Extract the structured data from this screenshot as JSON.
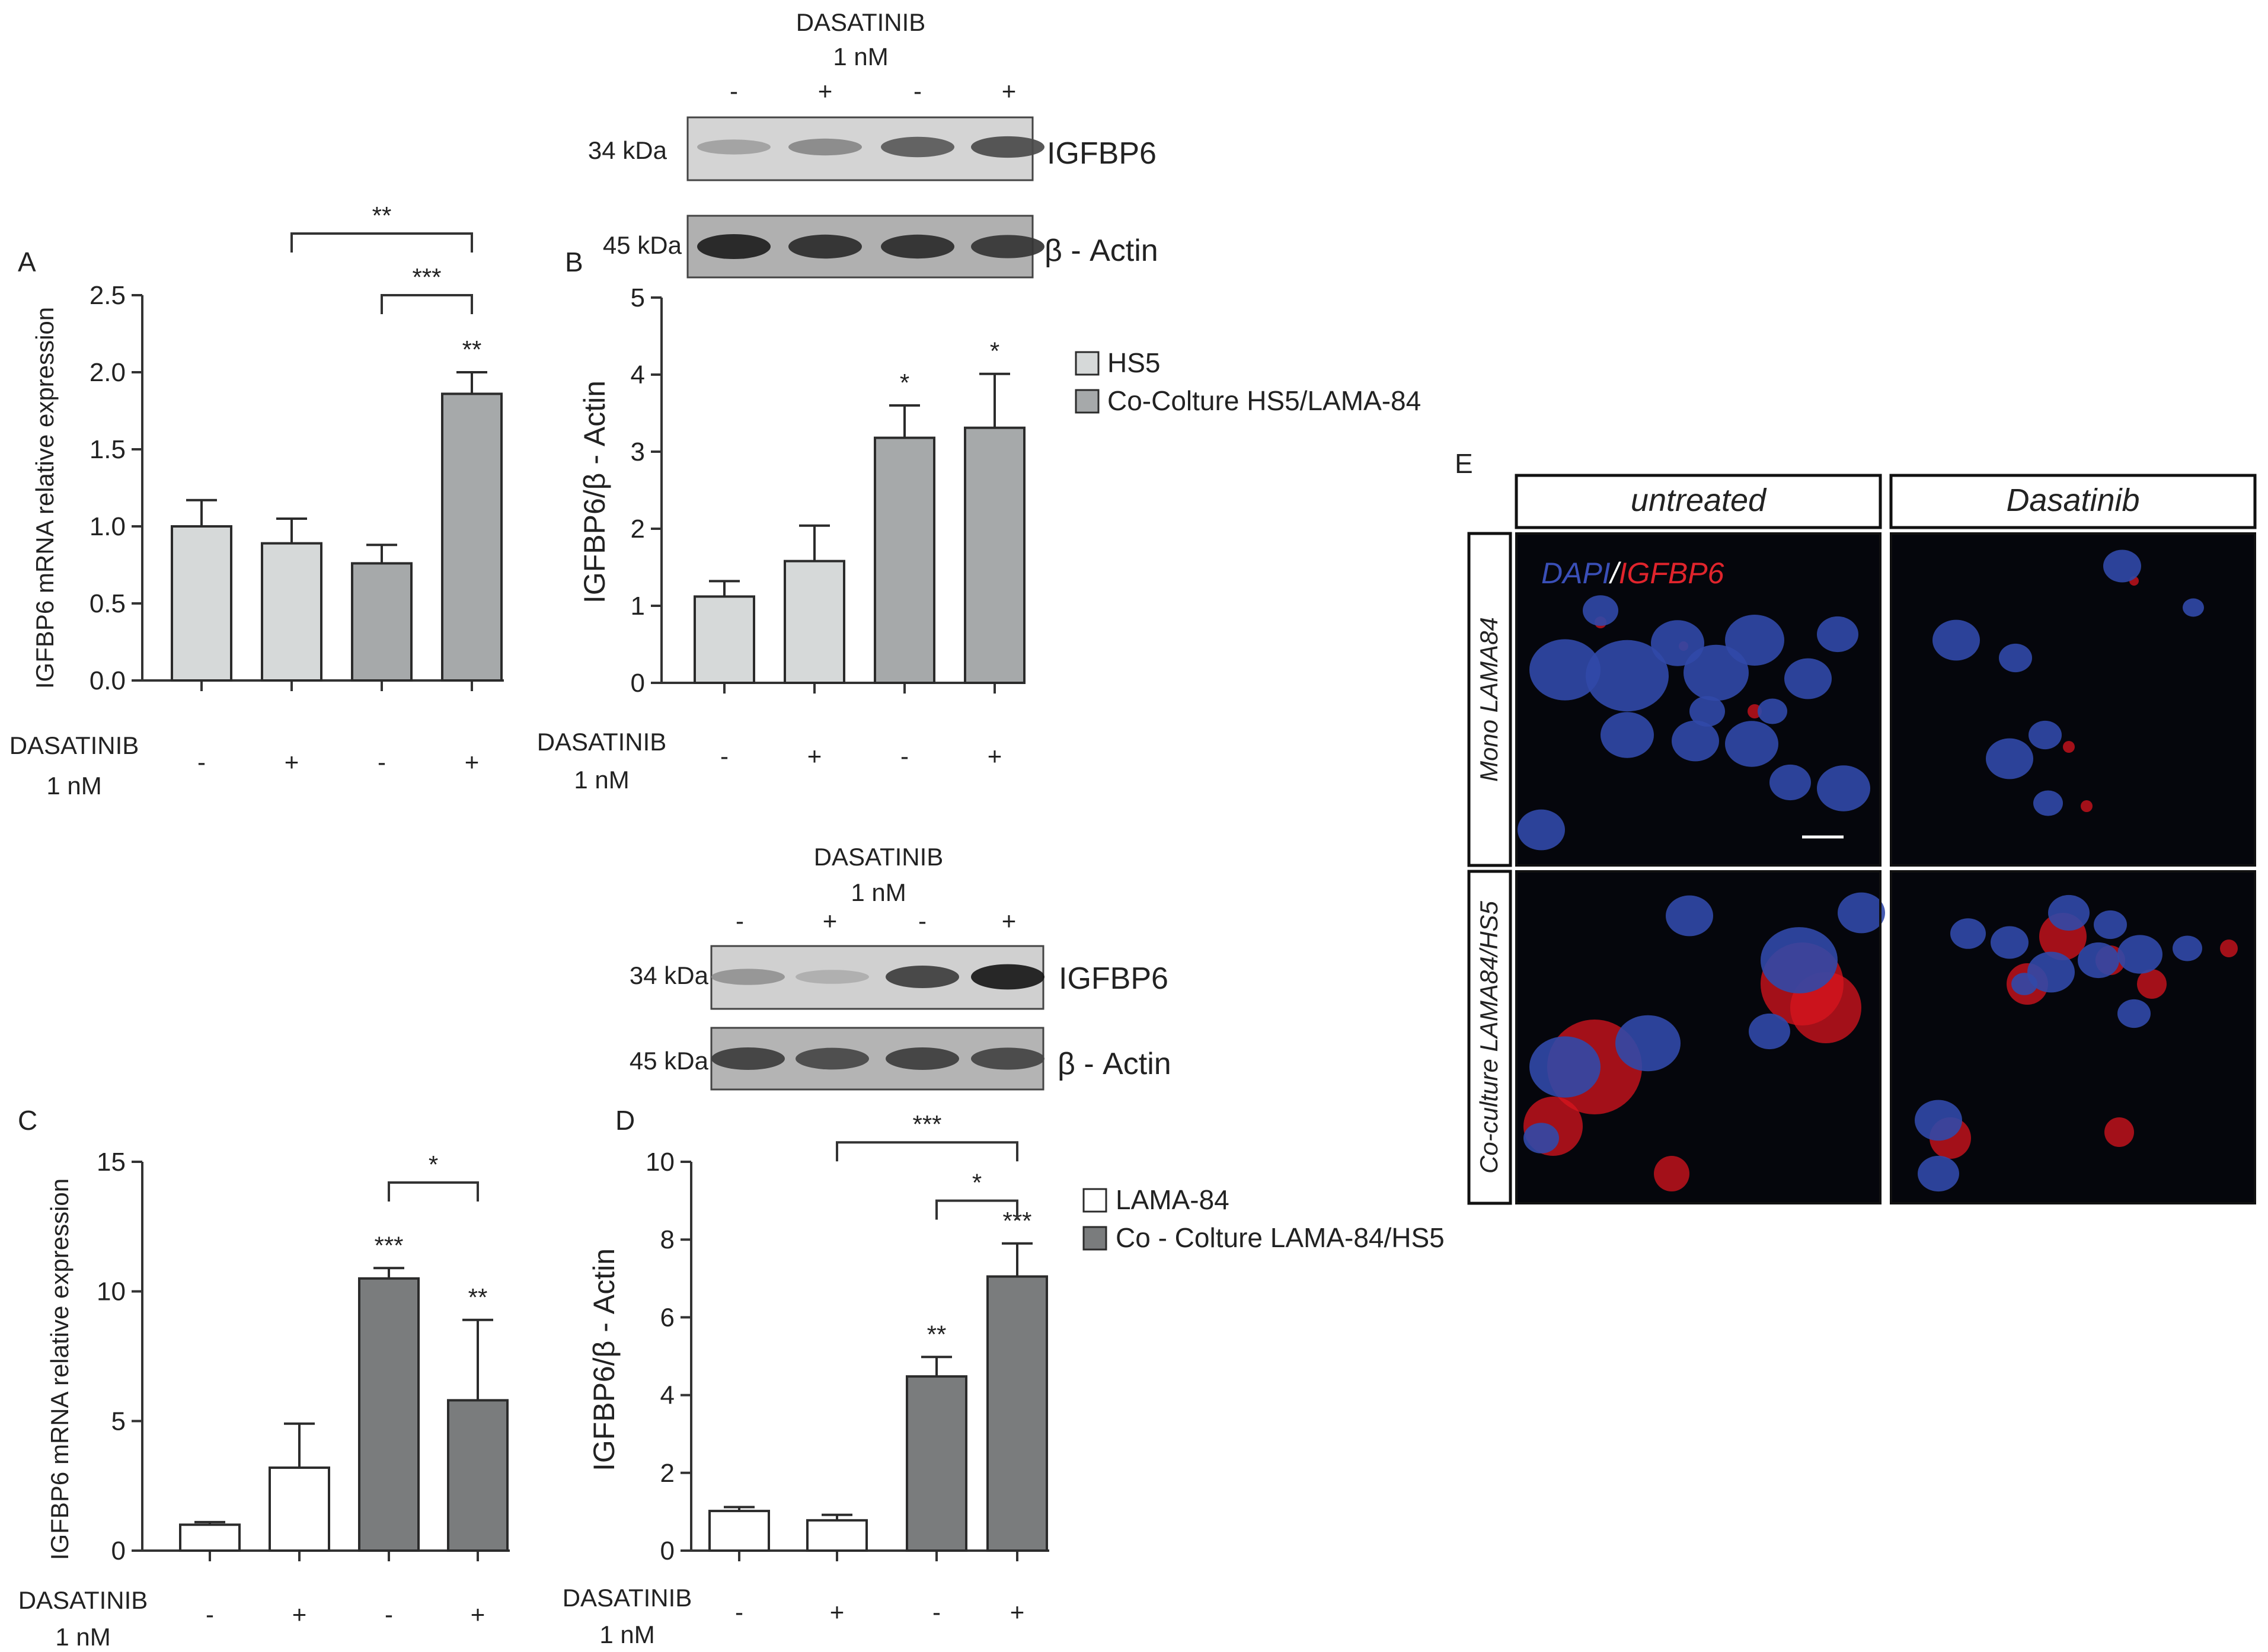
{
  "colors": {
    "light_bar": "#d6d9d9",
    "mid_bar": "#a6a9aa",
    "white_bar": "#ffffff",
    "dark_bar": "#7a7c7d",
    "bar_stroke": "#2b2b2b",
    "dapi_text": "#3a4fb8",
    "igfbp6_text": "#e0242c",
    "micro_bg": "#05060c",
    "nucleus": "#3149a8",
    "stain": "#d8141e"
  },
  "treatment_labels": {
    "drug": "DASATINIB",
    "dose": "1 nM",
    "signs": [
      "-",
      "+",
      "-",
      "+"
    ]
  },
  "legend_top": {
    "items": [
      "HS5",
      "Co-Colture HS5/LAMA-84"
    ]
  },
  "legend_bottom": {
    "items": [
      "LAMA-84",
      "Co - Colture LAMA-84/HS5"
    ]
  },
  "blot_top": {
    "header_drug": "DASATINIB",
    "header_dose": "1 nM",
    "signs": [
      "-",
      "+",
      "-",
      "+"
    ],
    "rows": [
      {
        "kda": "34 kDa",
        "protein": "IGFBP6",
        "band_intensity": [
          0.22,
          0.35,
          0.6,
          0.68
        ]
      },
      {
        "kda": "45 kDa",
        "protein": "β - Actin",
        "band_intensity": [
          0.92,
          0.85,
          0.85,
          0.8
        ]
      }
    ]
  },
  "blot_bottom": {
    "header_drug": "DASATINIB",
    "header_dose": "1 nM",
    "signs": [
      "-",
      "+",
      "-",
      "+"
    ],
    "rows": [
      {
        "kda": "34 kDa",
        "protein": "IGFBP6",
        "band_intensity": [
          0.3,
          0.15,
          0.75,
          0.95
        ]
      },
      {
        "kda": "45 kDa",
        "protein": "β - Actin",
        "band_intensity": [
          0.75,
          0.7,
          0.75,
          0.72
        ]
      }
    ]
  },
  "panel_e": {
    "letter": "E",
    "columns": [
      "untreated",
      "Dasatinib"
    ],
    "rows": [
      "Mono LAMA84",
      "Co-culture LAMA84/HS5"
    ],
    "stain_label_dapi": "DAPI",
    "stain_label_sep": "/",
    "stain_label_igfbp6": "IGFBP6"
  },
  "chart_data": [
    {
      "panel": "A",
      "type": "bar",
      "categories": [
        "-",
        "+",
        "-",
        "+"
      ],
      "values": [
        1.0,
        0.89,
        0.76,
        1.86
      ],
      "errors": [
        0.17,
        0.16,
        0.12,
        0.14
      ],
      "bar_colors": [
        "light_bar",
        "light_bar",
        "mid_bar",
        "mid_bar"
      ],
      "ylabel": "IGFBP6 mRNA relative expression",
      "xlabel": "",
      "ylim": [
        0,
        2.5
      ],
      "yticks": [
        0.0,
        0.5,
        1.0,
        1.5,
        2.0,
        2.5
      ],
      "ytick_labels": [
        "0.0",
        "0.5",
        "1.0",
        "1.5",
        "2.0",
        "2.5"
      ],
      "bar_annotations": [
        "",
        "",
        "",
        "**"
      ],
      "brackets": [
        {
          "from": 1,
          "to": 3,
          "level": 2.9,
          "label": "**"
        },
        {
          "from": 2,
          "to": 3,
          "level": 2.5,
          "label": "***"
        }
      ]
    },
    {
      "panel": "B",
      "type": "bar",
      "categories": [
        "-",
        "+",
        "-",
        "+"
      ],
      "values": [
        1.12,
        1.58,
        3.18,
        3.31
      ],
      "errors": [
        0.2,
        0.46,
        0.42,
        0.7
      ],
      "bar_colors": [
        "light_bar",
        "light_bar",
        "mid_bar",
        "mid_bar"
      ],
      "ylabel": "IGFBP6/β - Actin",
      "xlabel": "",
      "ylim": [
        0,
        5
      ],
      "yticks": [
        0,
        1,
        2,
        3,
        4,
        5
      ],
      "ytick_labels": [
        "0",
        "1",
        "2",
        "3",
        "4",
        "5"
      ],
      "bar_annotations": [
        "",
        "",
        "*",
        "*"
      ],
      "brackets": []
    },
    {
      "panel": "C",
      "type": "bar",
      "categories": [
        "-",
        "+",
        "-",
        "+"
      ],
      "values": [
        1.0,
        3.2,
        10.5,
        5.8
      ],
      "errors": [
        0.1,
        1.7,
        0.4,
        3.1
      ],
      "bar_colors": [
        "white_bar",
        "white_bar",
        "dark_bar",
        "dark_bar"
      ],
      "ylabel": "IGFBP6 mRNA relative expression",
      "xlabel": "",
      "ylim": [
        0,
        15
      ],
      "yticks": [
        0,
        5,
        10,
        15
      ],
      "ytick_labels": [
        "0",
        "5",
        "10",
        "15"
      ],
      "bar_annotations": [
        "",
        "",
        "***",
        "**"
      ],
      "brackets": [
        {
          "from": 2,
          "to": 3,
          "level": 14.2,
          "label": "*"
        }
      ]
    },
    {
      "panel": "D",
      "type": "bar",
      "categories": [
        "-",
        "+",
        "-",
        "+"
      ],
      "values": [
        1.02,
        0.78,
        4.48,
        7.05
      ],
      "errors": [
        0.1,
        0.14,
        0.5,
        0.85
      ],
      "bar_colors": [
        "white_bar",
        "white_bar",
        "dark_bar",
        "dark_bar"
      ],
      "ylabel": "IGFBP6/β - Actin",
      "xlabel": "",
      "ylim": [
        0,
        10
      ],
      "yticks": [
        0,
        2,
        4,
        6,
        8,
        10
      ],
      "ytick_labels": [
        "0",
        "2",
        "4",
        "6",
        "8",
        "10"
      ],
      "bar_annotations": [
        "",
        "",
        "**",
        "***"
      ],
      "brackets": [
        {
          "from": 1,
          "to": 3,
          "level": 10.5,
          "label": "***"
        },
        {
          "from": 2,
          "to": 3,
          "level": 9.0,
          "label": "*"
        }
      ]
    }
  ]
}
